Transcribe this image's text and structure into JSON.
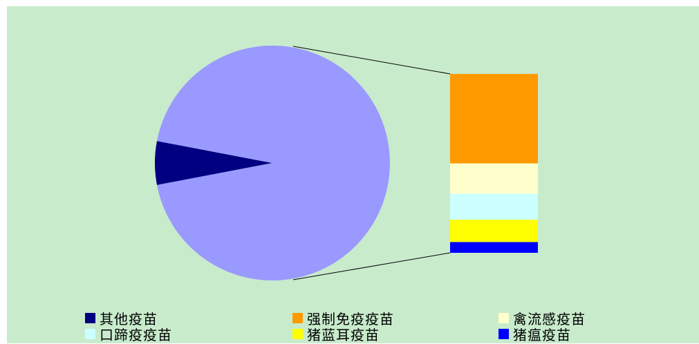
{
  "chart_data": {
    "type": "pie",
    "subtype": "bar-of-pie",
    "main_pie": [
      {
        "name": "其他疫苗",
        "value": 6.0,
        "color": "#000080"
      },
      {
        "name": "",
        "value": 94.0,
        "color": "#9999ff"
      }
    ],
    "bar_breakdown": [
      {
        "name": "强制免疫疫苗",
        "value": 50.0,
        "color": "#ff9900"
      },
      {
        "name": "禽流感疫苗",
        "value": 17.0,
        "color": "#ffffcc"
      },
      {
        "name": "口蹄疫疫苗",
        "value": 14.5,
        "color": "#ccffff"
      },
      {
        "name": "猪蓝耳疫苗",
        "value": 12.5,
        "color": "#ffff00"
      },
      {
        "name": "猪瘟疫苗",
        "value": 6.0,
        "color": "#0000ff"
      }
    ],
    "legend_position": "bottom",
    "legend": [
      {
        "label": "其他疫苗",
        "color": "#000080"
      },
      {
        "label": "强制免疫疫苗",
        "color": "#ff9900"
      },
      {
        "label": "禽流感疫苗",
        "color": "#ffffcc"
      },
      {
        "label": "口蹄疫疫苗",
        "color": "#ccffff"
      },
      {
        "label": "猪蓝耳疫苗",
        "color": "#ffff00"
      },
      {
        "label": "猪瘟疫苗",
        "color": "#0000ff"
      }
    ],
    "background_color": "#c8ebcc"
  }
}
